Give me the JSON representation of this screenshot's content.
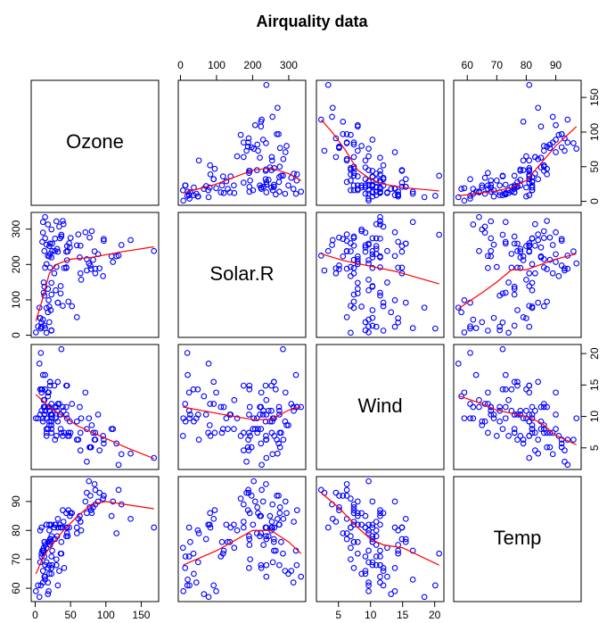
{
  "chart_data": {
    "type": "pairs",
    "title": "Airquality data",
    "point_color": "#0000ff",
    "smooth_color": "#ff0000",
    "variables": [
      {
        "name": "Ozone",
        "lim": [
          -5.68,
          174.68
        ],
        "ticks": [
          0,
          50,
          100,
          150
        ],
        "values": [
          41,
          36,
          12,
          18,
          23,
          19,
          8,
          16,
          11,
          14,
          18,
          14,
          34,
          6,
          30,
          11,
          1,
          11,
          4,
          32,
          23,
          45,
          115,
          37,
          29,
          71,
          39,
          23,
          21,
          37,
          20,
          12,
          13,
          135,
          49,
          32,
          64,
          40,
          77,
          97,
          97,
          85,
          10,
          27,
          7,
          48,
          35,
          61,
          79,
          63,
          16,
          80,
          108,
          20,
          52,
          82,
          50,
          64,
          59,
          39,
          9,
          16,
          122,
          89,
          110,
          44,
          28,
          65,
          22,
          59,
          23,
          31,
          44,
          21,
          9,
          45,
          168,
          73,
          76,
          118,
          84,
          85,
          96,
          78,
          73,
          91,
          47,
          32,
          20,
          23,
          21,
          24,
          44,
          21,
          28,
          9,
          13,
          46,
          18,
          13,
          24,
          16,
          13,
          23,
          36,
          7,
          14,
          30,
          14,
          18,
          20
        ]
      },
      {
        "name": "Solar.R",
        "lim": [
          -6.08,
          347.08
        ],
        "ticks": [
          0,
          100,
          200,
          300
        ],
        "values": [
          190,
          118,
          149,
          313,
          299,
          99,
          19,
          256,
          290,
          274,
          65,
          334,
          307,
          78,
          322,
          44,
          8,
          320,
          25,
          92,
          13,
          252,
          223,
          279,
          127,
          291,
          323,
          148,
          191,
          284,
          37,
          120,
          137,
          269,
          248,
          236,
          175,
          314,
          276,
          267,
          272,
          175,
          264,
          175,
          48,
          260,
          274,
          285,
          187,
          220,
          7,
          294,
          223,
          81,
          82,
          213,
          275,
          253,
          254,
          83,
          24,
          77,
          255,
          229,
          207,
          192,
          273,
          157,
          71,
          51,
          115,
          244,
          190,
          259,
          36,
          212,
          238,
          215,
          203,
          225,
          237,
          188,
          167,
          197,
          183,
          189,
          95,
          92,
          252,
          220,
          230,
          259,
          236,
          259,
          238,
          24,
          112,
          237,
          224,
          27,
          238,
          201,
          238,
          14,
          139,
          49,
          20,
          193,
          191,
          131,
          223
        ]
      },
      {
        "name": "Wind",
        "lim": [
          1.56,
          21.44
        ],
        "ticks": [
          5,
          10,
          15,
          20
        ],
        "values": [
          7.4,
          8,
          12.6,
          11.5,
          8.6,
          13.8,
          20.1,
          9.7,
          9.2,
          10.9,
          13.2,
          11.5,
          12,
          18.4,
          11.5,
          9.7,
          9.7,
          16.6,
          9.7,
          12,
          12,
          14.9,
          5.7,
          7.4,
          9.7,
          13.8,
          11.5,
          8,
          14.9,
          20.7,
          9.2,
          11.5,
          10.3,
          4.1,
          9.2,
          9.2,
          4.6,
          10.9,
          5.1,
          6.3,
          5.7,
          7.4,
          14.3,
          14.9,
          14.3,
          6.9,
          10.3,
          6.3,
          5.1,
          11.5,
          6.9,
          8.6,
          8,
          8.6,
          12,
          7.4,
          7.4,
          7.4,
          9.2,
          6.9,
          13.8,
          7.4,
          4,
          10.3,
          8,
          11.5,
          11.5,
          9.7,
          10.3,
          6.3,
          7.4,
          10.9,
          10.3,
          15.5,
          14.3,
          9.7,
          3.4,
          8,
          9.7,
          2.3,
          6.3,
          6.3,
          6.9,
          5.1,
          2.8,
          4.6,
          7.4,
          15.5,
          10.9,
          10.3,
          10.9,
          9.7,
          14.9,
          15.5,
          6.3,
          10.9,
          11.5,
          6.9,
          13.8,
          10.3,
          10.3,
          8,
          12.6,
          9.2,
          10.3,
          10.3,
          16.6,
          6.9,
          14.3,
          8,
          11.5
        ]
      },
      {
        "name": "Temp",
        "lim": [
          55.4,
          98.6
        ],
        "ticks": [
          60,
          70,
          80,
          90
        ],
        "values": [
          67,
          72,
          74,
          62,
          65,
          59,
          61,
          69,
          66,
          68,
          58,
          64,
          66,
          57,
          68,
          62,
          59,
          73,
          61,
          61,
          67,
          81,
          79,
          76,
          82,
          90,
          87,
          82,
          77,
          72,
          65,
          73,
          76,
          84,
          85,
          81,
          83,
          83,
          88,
          92,
          92,
          89,
          73,
          81,
          80,
          81,
          82,
          84,
          87,
          85,
          74,
          86,
          85,
          82,
          86,
          88,
          86,
          83,
          81,
          81,
          81,
          82,
          89,
          90,
          90,
          86,
          82,
          80,
          77,
          79,
          76,
          78,
          78,
          77,
          72,
          79,
          81,
          86,
          97,
          94,
          96,
          94,
          91,
          92,
          93,
          93,
          87,
          84,
          80,
          78,
          75,
          73,
          81,
          76,
          77,
          71,
          71,
          78,
          67,
          76,
          68,
          82,
          64,
          71,
          81,
          69,
          63,
          70,
          75,
          76,
          68
        ]
      }
    ],
    "smooths": [
      [
        null,
        {
          "x": [
            7,
            50,
            100,
            150,
            200,
            250,
            300,
            334
          ],
          "y": [
            12,
            18,
            25,
            35,
            45,
            48,
            40,
            30
          ]
        },
        {
          "x": [
            2.3,
            4,
            6,
            8,
            10,
            12,
            15,
            20.7
          ],
          "y": [
            118,
            100,
            75,
            45,
            32,
            25,
            20,
            15
          ]
        },
        {
          "x": [
            57,
            65,
            70,
            75,
            80,
            85,
            90,
            97
          ],
          "y": [
            8,
            12,
            15,
            20,
            30,
            55,
            80,
            108
          ]
        }
      ],
      [
        {
          "x": [
            1,
            10,
            20,
            30,
            50,
            80,
            120,
            168
          ],
          "y": [
            40,
            100,
            175,
            200,
            215,
            220,
            235,
            250
          ]
        },
        null,
        {
          "x": [
            2.3,
            6,
            10,
            14,
            20.7
          ],
          "y": [
            230,
            210,
            195,
            180,
            145
          ]
        },
        {
          "x": [
            57,
            65,
            70,
            75,
            80,
            85,
            90,
            97
          ],
          "y": [
            75,
            120,
            150,
            185,
            185,
            200,
            215,
            230
          ]
        }
      ],
      [
        {
          "x": [
            1,
            20,
            40,
            60,
            80,
            100,
            130,
            168
          ],
          "y": [
            13.5,
            11.5,
            10,
            8.5,
            7.5,
            6.5,
            5,
            3.3
          ]
        },
        {
          "x": [
            7,
            100,
            200,
            250,
            300,
            334
          ],
          "y": [
            11.5,
            10.5,
            9.5,
            9.5,
            11,
            11.5
          ]
        },
        null,
        {
          "x": [
            57,
            65,
            70,
            75,
            80,
            85,
            90,
            97
          ],
          "y": [
            13.3,
            12,
            11,
            10.5,
            10,
            9,
            7,
            5.5
          ]
        }
      ],
      [
        {
          "x": [
            1,
            10,
            20,
            40,
            60,
            80,
            100,
            168
          ],
          "y": [
            65,
            70,
            74,
            80,
            85,
            89,
            90,
            87.5
          ]
        },
        {
          "x": [
            7,
            100,
            200,
            250,
            300,
            334
          ],
          "y": [
            68,
            73,
            80,
            80,
            76,
            72
          ]
        },
        {
          "x": [
            2.3,
            5,
            8,
            10,
            12,
            15,
            20.7
          ],
          "y": [
            93,
            88,
            81,
            77,
            75,
            74,
            68
          ]
        },
        null
      ]
    ]
  }
}
